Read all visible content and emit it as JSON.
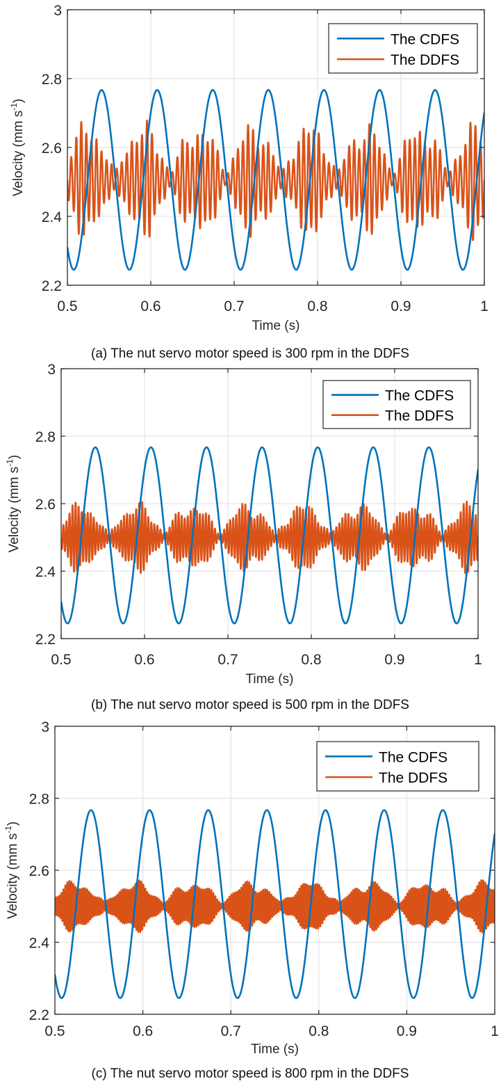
{
  "colors": {
    "cdfs": "#0072BD",
    "ddfs": "#D95319",
    "axis": "#262626",
    "grid": "#DFDFDF"
  },
  "chart_data": [
    {
      "type": "line",
      "caption": "(a) The nut servo motor speed is 300 rpm in the DDFS",
      "xlabel": "Time (s)",
      "ylabel": "Velocity (mm s",
      "ylabel_sup": "-1",
      "ylabel_close": ")",
      "xlim": [
        0.5,
        1
      ],
      "ylim": [
        2.2,
        3
      ],
      "xticks": [
        "0.5",
        "0.6",
        "0.7",
        "0.8",
        "0.9",
        "1"
      ],
      "yticks": [
        "2.2",
        "2.4",
        "2.6",
        "2.8",
        "3"
      ],
      "grid": true,
      "legend_position": "top-right",
      "series": [
        {
          "name": "The CDFS",
          "model": "sine",
          "mean": 2.506,
          "amplitude": 0.261,
          "frequency_hz": 15,
          "peak_time": 0.541
        },
        {
          "name": "The DDFS",
          "model": "beat",
          "mean": 2.505,
          "amplitude": 0.18,
          "carrier_hz": 165,
          "beat_hz": 15,
          "quiet_time": 0.557,
          "residual": 0.02
        }
      ]
    },
    {
      "type": "line",
      "caption": "(b) The nut servo motor speed is 500 rpm in the DDFS",
      "xlabel": "Time (s)",
      "ylabel": "Velocity (mm s",
      "ylabel_sup": "-1",
      "ylabel_close": ")",
      "xlim": [
        0.5,
        1
      ],
      "ylim": [
        2.2,
        3
      ],
      "xticks": [
        "0.5",
        "0.6",
        "0.7",
        "0.8",
        "0.9",
        "1"
      ],
      "yticks": [
        "2.2",
        "2.4",
        "2.6",
        "2.8",
        "3"
      ],
      "grid": true,
      "legend_position": "top-right",
      "series": [
        {
          "name": "The CDFS",
          "model": "sine",
          "mean": 2.506,
          "amplitude": 0.261,
          "frequency_hz": 15,
          "peak_time": 0.541
        },
        {
          "name": "The DDFS",
          "model": "beat",
          "mean": 2.5,
          "amplitude": 0.11,
          "carrier_hz": 275,
          "beat_hz": 15,
          "quiet_time": 0.557,
          "residual": 0.01
        }
      ]
    },
    {
      "type": "line",
      "caption": "(c) The nut servo motor speed is 800 rpm in the DDFS",
      "xlabel": "Time (s)",
      "ylabel": "Velocity (mm s",
      "ylabel_sup": "-1",
      "ylabel_close": ")",
      "xlim": [
        0.5,
        1
      ],
      "ylim": [
        2.2,
        3
      ],
      "xticks": [
        "0.5",
        "0.6",
        "0.7",
        "0.8",
        "0.9",
        "1"
      ],
      "yticks": [
        "2.2",
        "2.4",
        "2.6",
        "2.8",
        "3"
      ],
      "grid": true,
      "legend_position": "top-right",
      "series": [
        {
          "name": "The CDFS",
          "model": "sine",
          "mean": 2.506,
          "amplitude": 0.261,
          "frequency_hz": 15,
          "peak_time": 0.541
        },
        {
          "name": "The DDFS",
          "model": "beat",
          "mean": 2.5,
          "amplitude": 0.075,
          "carrier_hz": 440,
          "beat_hz": 15,
          "quiet_time": 0.557,
          "residual": 0.01
        }
      ]
    }
  ]
}
